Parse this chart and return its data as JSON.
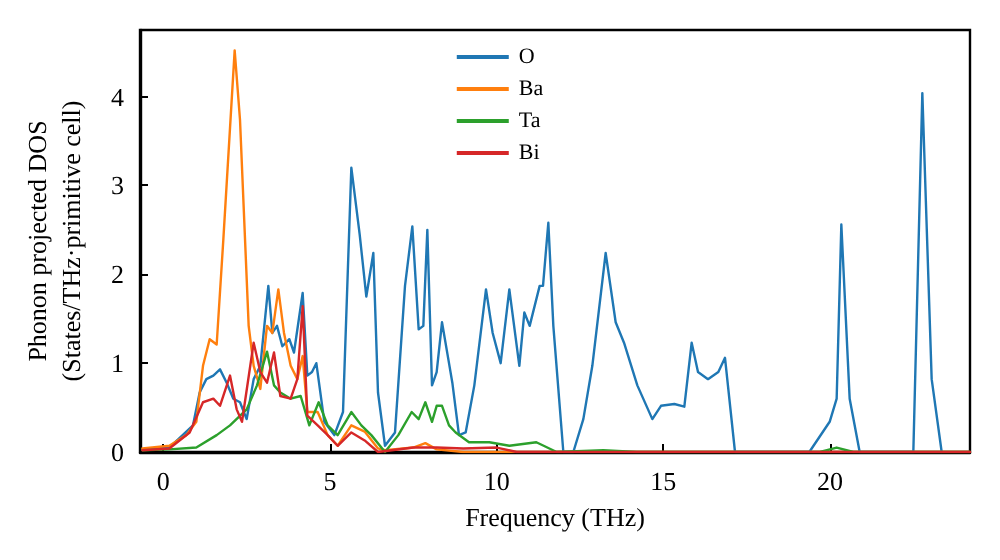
{
  "chart_data": {
    "type": "line",
    "xlabel": "Frequency (THz)",
    "ylabel": "Phonon projected DOS\n(States/THz·primitive cell)",
    "xlim": [
      -0.7,
      24.2
    ],
    "xticks": [
      0,
      5,
      10,
      15,
      20
    ],
    "ylim": [
      0,
      4.75
    ],
    "yticks": [
      0,
      1,
      2,
      3,
      4
    ],
    "grid": false,
    "legend": "top",
    "marker": "none",
    "line_style": "solid",
    "series": [
      {
        "name": "O",
        "color": "#1f77b4",
        "x": [
          -0.63,
          0.18,
          0.89,
          1.09,
          1.29,
          1.5,
          1.7,
          1.9,
          2.1,
          2.3,
          2.5,
          2.71,
          2.91,
          3.15,
          3.27,
          3.41,
          3.57,
          3.78,
          3.92,
          4.18,
          4.32,
          4.46,
          4.59,
          4.83,
          5.13,
          5.39,
          5.64,
          5.89,
          6.09,
          6.3,
          6.44,
          6.65,
          6.95,
          7.25,
          7.47,
          7.66,
          7.8,
          7.92,
          8.06,
          8.2,
          8.36,
          8.57,
          8.67,
          8.87,
          9.07,
          9.33,
          9.68,
          9.88,
          10.12,
          10.38,
          10.68,
          10.83,
          10.99,
          11.29,
          11.39,
          11.55,
          11.7,
          12.0,
          12.3,
          12.6,
          12.87,
          13.27,
          13.57,
          13.82,
          14.22,
          14.67,
          14.93,
          15.33,
          15.63,
          15.85,
          16.04,
          16.34,
          16.65,
          16.85,
          17.15,
          19.38,
          19.99,
          20.2,
          20.34,
          20.59,
          20.89,
          22.5,
          22.77,
          23.05,
          23.35
        ],
        "values": [
          0.03,
          0.05,
          0.3,
          0.67,
          0.82,
          0.86,
          0.93,
          0.78,
          0.6,
          0.56,
          0.37,
          0.82,
          0.97,
          1.87,
          1.34,
          1.42,
          1.19,
          1.27,
          1.12,
          1.79,
          0.86,
          0.9,
          1.0,
          0.34,
          0.19,
          0.45,
          3.2,
          2.45,
          1.75,
          2.24,
          0.67,
          0.07,
          0.22,
          1.87,
          2.54,
          1.38,
          1.42,
          2.5,
          0.75,
          0.9,
          1.46,
          1.0,
          0.78,
          0.19,
          0.22,
          0.75,
          1.83,
          1.34,
          1.0,
          1.83,
          0.97,
          1.57,
          1.42,
          1.87,
          1.87,
          2.58,
          1.42,
          0.0,
          0.0,
          0.37,
          0.97,
          2.24,
          1.46,
          1.23,
          0.75,
          0.37,
          0.52,
          0.54,
          0.51,
          1.23,
          0.9,
          0.82,
          0.9,
          1.06,
          0.0,
          0.0,
          0.34,
          0.6,
          2.56,
          0.6,
          0.0,
          0.0,
          4.04,
          0.82,
          0.0
        ]
      },
      {
        "name": "Ba",
        "color": "#ff7f0e",
        "x": [
          -0.63,
          0.18,
          0.69,
          0.99,
          1.19,
          1.39,
          1.6,
          1.8,
          2.14,
          2.3,
          2.56,
          2.71,
          2.91,
          3.11,
          3.27,
          3.45,
          3.62,
          3.82,
          4.02,
          4.18,
          4.32,
          4.63,
          4.93,
          5.23,
          5.64,
          6.04,
          6.44,
          6.65,
          7.5,
          7.86,
          8.2,
          9.0,
          24.2
        ],
        "values": [
          0.04,
          0.07,
          0.19,
          0.34,
          0.97,
          1.27,
          1.21,
          2.39,
          4.52,
          3.74,
          1.42,
          0.97,
          0.71,
          1.42,
          1.34,
          1.83,
          1.34,
          0.97,
          0.82,
          1.08,
          0.45,
          0.45,
          0.19,
          0.07,
          0.3,
          0.23,
          0.04,
          0.02,
          0.05,
          0.1,
          0.03,
          0.0,
          0.0
        ]
      },
      {
        "name": "Ta",
        "color": "#2ca02c",
        "x": [
          -0.63,
          0.18,
          0.99,
          1.6,
          2.0,
          2.5,
          2.81,
          3.11,
          3.32,
          3.51,
          3.82,
          4.12,
          4.38,
          4.66,
          4.93,
          5.23,
          5.64,
          5.94,
          6.24,
          6.65,
          7.05,
          7.45,
          7.66,
          7.86,
          8.06,
          8.2,
          8.36,
          8.57,
          8.77,
          9.17,
          9.78,
          10.38,
          11.19,
          11.8,
          13.2,
          14.2,
          19.7,
          20.2,
          20.7,
          24.2
        ],
        "values": [
          0.02,
          0.03,
          0.05,
          0.19,
          0.3,
          0.48,
          0.75,
          1.13,
          0.75,
          0.67,
          0.6,
          0.63,
          0.3,
          0.56,
          0.3,
          0.19,
          0.45,
          0.3,
          0.19,
          0.0,
          0.19,
          0.45,
          0.37,
          0.56,
          0.34,
          0.52,
          0.52,
          0.3,
          0.22,
          0.11,
          0.11,
          0.07,
          0.11,
          0.0,
          0.02,
          0.0,
          0.0,
          0.05,
          0.0,
          0.0
        ]
      },
      {
        "name": "Bi",
        "color": "#d62728",
        "x": [
          -0.63,
          0.18,
          0.79,
          1.19,
          1.5,
          1.7,
          2.0,
          2.2,
          2.36,
          2.71,
          2.91,
          3.11,
          3.32,
          3.51,
          3.82,
          4.02,
          4.18,
          4.32,
          4.63,
          4.93,
          5.23,
          5.64,
          6.04,
          6.44,
          7.5,
          8.2,
          9.0,
          10.0,
          10.6,
          24.2
        ],
        "values": [
          0.02,
          0.04,
          0.22,
          0.56,
          0.6,
          0.52,
          0.86,
          0.48,
          0.34,
          1.23,
          0.9,
          0.78,
          1.12,
          0.63,
          0.6,
          0.82,
          1.64,
          0.41,
          0.3,
          0.19,
          0.07,
          0.22,
          0.13,
          0.0,
          0.05,
          0.05,
          0.04,
          0.05,
          0.0,
          0.0
        ]
      }
    ]
  }
}
